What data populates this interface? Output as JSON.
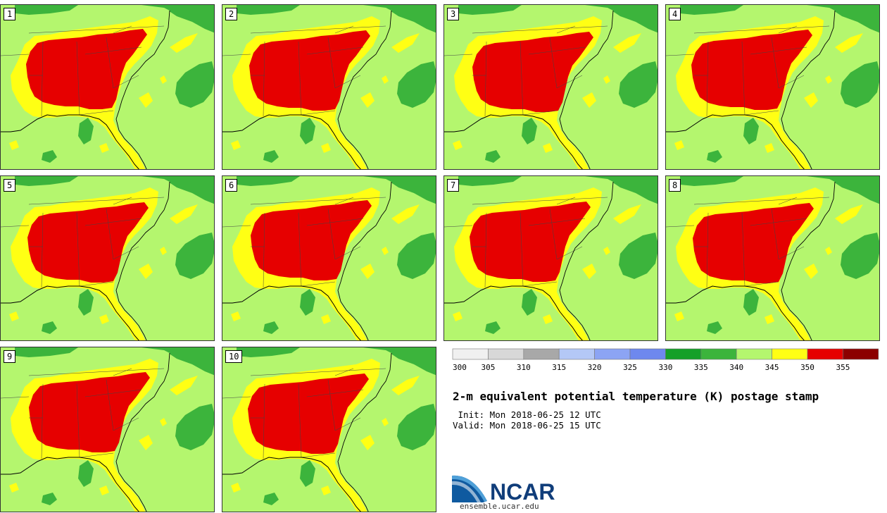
{
  "panels": [
    {
      "label": "1"
    },
    {
      "label": "2"
    },
    {
      "label": "3"
    },
    {
      "label": "4"
    },
    {
      "label": "5"
    },
    {
      "label": "6"
    },
    {
      "label": "7"
    },
    {
      "label": "8"
    },
    {
      "label": "9"
    },
    {
      "label": "10"
    }
  ],
  "colorbar": {
    "bins": [
      {
        "low": 300,
        "color": "#f0f0f0"
      },
      {
        "low": 305,
        "color": "#d8d8d8"
      },
      {
        "low": 310,
        "color": "#a8a8a8"
      },
      {
        "low": 315,
        "color": "#b4c8f6"
      },
      {
        "low": 320,
        "color": "#8ca4f4"
      },
      {
        "low": 325,
        "color": "#6e88ee"
      },
      {
        "low": 330,
        "color": "#14a028"
      },
      {
        "low": 335,
        "color": "#3cb43c"
      },
      {
        "low": 340,
        "color": "#b4f66e"
      },
      {
        "low": 345,
        "color": "#ffff14"
      },
      {
        "low": 350,
        "color": "#e60000"
      },
      {
        "low": 355,
        "color": "#8c0000"
      }
    ],
    "tick_labels": [
      "300",
      "305",
      "310",
      "315",
      "320",
      "325",
      "330",
      "335",
      "340",
      "345",
      "350",
      "355"
    ]
  },
  "title": "2-m equivalent potential temperature (K) postage stamp",
  "init": " Init: Mon 2018-06-25 12 UTC",
  "valid": "Valid: Mon 2018-06-25 15 UTC",
  "logo_text": "NCAR",
  "site": "ensemble.ucar.edu",
  "colors": {
    "ocean": "#b4f66e",
    "land_warm": "#ffff14",
    "hot": "#e60000",
    "cool_land": "#3cb43c",
    "coast": "#000000"
  }
}
